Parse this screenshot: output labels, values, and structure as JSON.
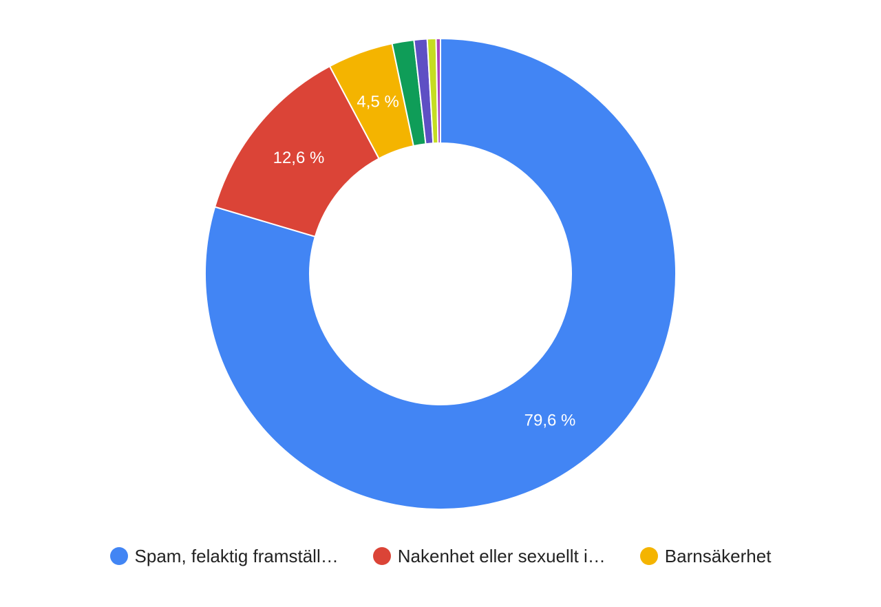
{
  "chart_data": {
    "type": "pie",
    "donut": true,
    "title": "",
    "series": [
      {
        "name": "Spam, felaktig framställ…",
        "value": 79.6,
        "label": "79,6 %",
        "color": "#4285F4"
      },
      {
        "name": "Nakenhet eller sexuellt i…",
        "value": 12.6,
        "label": "12,6 %",
        "color": "#DB4437"
      },
      {
        "name": "Barnsäkerhet",
        "value": 4.5,
        "label": "4,5 %",
        "color": "#F4B400"
      },
      {
        "name": "",
        "value": 1.5,
        "label": "",
        "color": "#0F9D58"
      },
      {
        "name": "",
        "value": 0.9,
        "label": "",
        "color": "#5E4FC4"
      },
      {
        "name": "",
        "value": 0.6,
        "label": "",
        "color": "#C5DD22"
      },
      {
        "name": "",
        "value": 0.3,
        "label": "",
        "color": "#AB47BC"
      }
    ],
    "legend": {
      "placement": "bottom",
      "items": [
        {
          "label": "Spam, felaktig framställ…",
          "color": "#4285F4"
        },
        {
          "label": "Nakenhet eller sexuellt i…",
          "color": "#DB4437"
        },
        {
          "label": "Barnsäkerhet",
          "color": "#F4B400"
        }
      ]
    }
  }
}
